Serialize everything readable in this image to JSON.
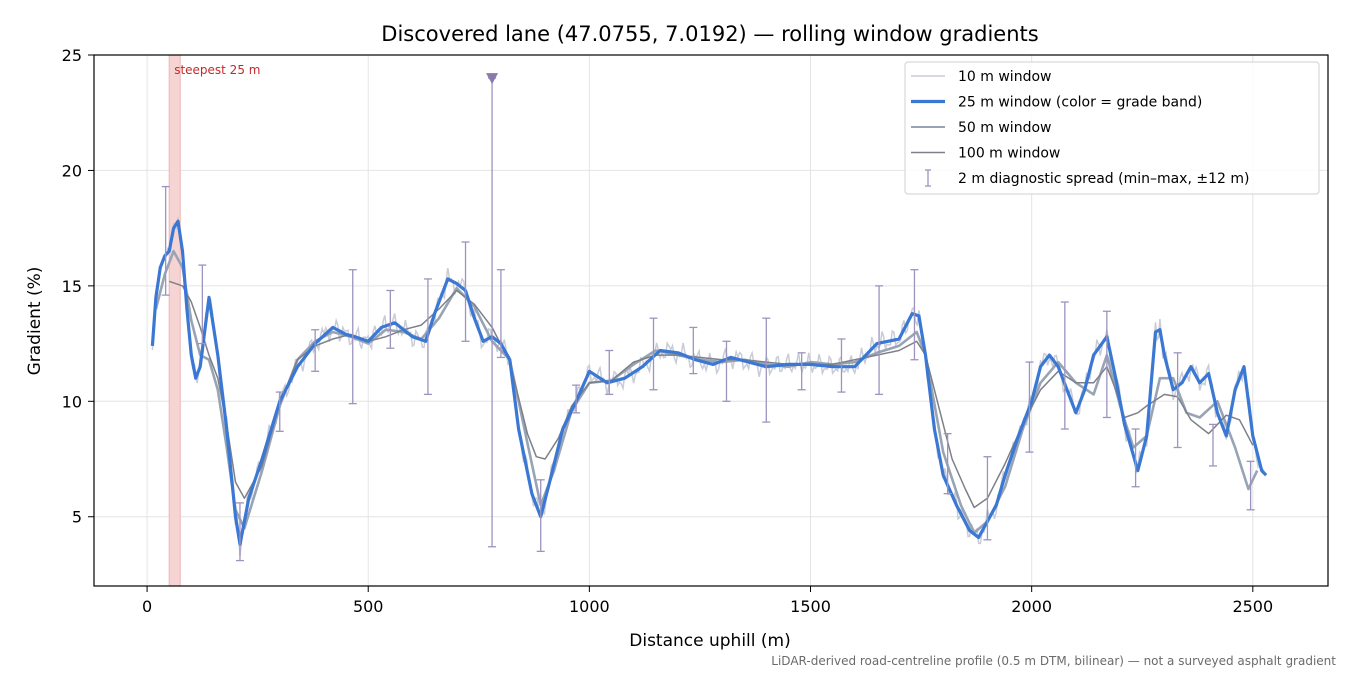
{
  "chart_data": {
    "type": "line",
    "title": "Discovered lane (47.0755, 7.0192) — rolling window gradients",
    "xlabel": "Distance uphill (m)",
    "ylabel": "Gradient (%)",
    "footnote": "LiDAR-derived road-centreline profile (0.5 m DTM, bilinear) — not a surveyed asphalt gradient",
    "xlim": [
      -120,
      2670
    ],
    "ylim": [
      2,
      25
    ],
    "x_ticks": [
      0,
      500,
      1000,
      1500,
      2000,
      2500
    ],
    "y_ticks": [
      5,
      10,
      15,
      20,
      25
    ],
    "grid": true,
    "legend_position": "top-right",
    "annotation": {
      "label": "steepest 25 m",
      "x_range": [
        50,
        75
      ],
      "color": "#c62828"
    },
    "marker": {
      "x": 780,
      "y": 24,
      "symbol": "down-triangle",
      "color": "#8a79a9"
    },
    "colors": {
      "w10": "#c8ccd6",
      "w25": "#3a78d4",
      "w50": "#98a4b4",
      "w100": "#7d8088",
      "spread": "#9d93bf",
      "highlight": "#f6d4d4"
    },
    "legend": [
      {
        "key": "w10",
        "label": "10 m window"
      },
      {
        "key": "w25",
        "label": "25 m window (color = grade band)"
      },
      {
        "key": "w50",
        "label": "50 m window"
      },
      {
        "key": "w100",
        "label": "100 m window"
      },
      {
        "key": "spread",
        "label": "2 m diagnostic spread (min–max, ±12 m)"
      }
    ],
    "series": [
      {
        "name": "25 m window (color = grade band)",
        "key": "w25",
        "x": [
          12,
          20,
          30,
          40,
          50,
          60,
          70,
          80,
          90,
          100,
          110,
          120,
          130,
          140,
          160,
          180,
          200,
          210,
          230,
          260,
          300,
          340,
          380,
          420,
          450,
          470,
          500,
          530,
          560,
          600,
          630,
          650,
          680,
          700,
          720,
          740,
          760,
          780,
          800,
          820,
          840,
          870,
          890,
          910,
          940,
          970,
          1000,
          1040,
          1080,
          1120,
          1160,
          1200,
          1240,
          1280,
          1320,
          1360,
          1400,
          1450,
          1500,
          1550,
          1600,
          1650,
          1700,
          1730,
          1745,
          1760,
          1780,
          1800,
          1830,
          1860,
          1880,
          1900,
          1920,
          1940,
          1970,
          2000,
          2020,
          2040,
          2060,
          2080,
          2100,
          2120,
          2140,
          2170,
          2190,
          2210,
          2240,
          2260,
          2280,
          2290,
          2300,
          2320,
          2340,
          2360,
          2380,
          2400,
          2420,
          2440,
          2460,
          2480,
          2500,
          2520,
          2530
        ],
        "y": [
          12.4,
          14.5,
          15.8,
          16.3,
          16.5,
          17.5,
          17.8,
          16.5,
          14.0,
          12.0,
          11.0,
          11.5,
          13.0,
          14.5,
          12.0,
          8.8,
          5.0,
          3.8,
          5.8,
          7.5,
          10.0,
          11.5,
          12.5,
          13.2,
          12.9,
          12.8,
          12.6,
          13.2,
          13.4,
          12.8,
          12.6,
          13.8,
          15.3,
          15.1,
          14.8,
          13.6,
          12.6,
          12.8,
          12.5,
          11.8,
          8.8,
          6.0,
          5.0,
          6.5,
          8.8,
          10.0,
          11.3,
          10.8,
          11.0,
          11.5,
          12.2,
          12.1,
          11.8,
          11.6,
          11.9,
          11.7,
          11.5,
          11.6,
          11.6,
          11.5,
          11.5,
          12.5,
          12.7,
          13.8,
          13.7,
          12.0,
          8.8,
          6.8,
          5.5,
          4.4,
          4.1,
          4.8,
          5.5,
          6.8,
          8.5,
          10.0,
          11.5,
          12.0,
          11.5,
          10.5,
          9.5,
          10.5,
          12.0,
          12.8,
          11.0,
          9.0,
          7.0,
          8.5,
          13.0,
          13.1,
          12.0,
          10.5,
          10.8,
          11.5,
          10.8,
          11.2,
          9.5,
          8.5,
          10.5,
          11.5,
          8.5,
          7.0,
          6.8
        ]
      },
      {
        "name": "50 m window",
        "key": "w50",
        "x": [
          20,
          40,
          60,
          80,
          100,
          120,
          140,
          160,
          180,
          200,
          220,
          260,
          300,
          340,
          380,
          420,
          460,
          500,
          540,
          580,
          620,
          660,
          700,
          740,
          780,
          820,
          860,
          890,
          920,
          960,
          1000,
          1050,
          1100,
          1150,
          1200,
          1250,
          1300,
          1350,
          1400,
          1450,
          1500,
          1550,
          1600,
          1650,
          1700,
          1740,
          1760,
          1800,
          1840,
          1870,
          1900,
          1940,
          1980,
          2020,
          2060,
          2100,
          2140,
          2170,
          2200,
          2230,
          2260,
          2290,
          2320,
          2350,
          2380,
          2420,
          2460,
          2490,
          2510
        ],
        "y": [
          14.0,
          15.5,
          16.5,
          15.8,
          13.5,
          12.0,
          11.8,
          10.5,
          8.0,
          5.3,
          4.5,
          7.0,
          9.8,
          11.8,
          12.6,
          13.0,
          12.8,
          12.5,
          13.1,
          13.0,
          12.7,
          13.6,
          14.9,
          14.1,
          12.6,
          11.8,
          8.2,
          5.5,
          7.0,
          9.6,
          10.8,
          10.9,
          11.6,
          12.2,
          12.0,
          11.8,
          11.7,
          11.8,
          11.6,
          11.5,
          11.7,
          11.6,
          11.7,
          12.1,
          12.4,
          13.0,
          12.0,
          7.8,
          5.5,
          4.3,
          4.8,
          6.3,
          8.8,
          10.8,
          11.7,
          10.8,
          10.3,
          12.0,
          9.8,
          8.0,
          8.5,
          11.0,
          11.0,
          9.5,
          9.3,
          10.0,
          8.0,
          6.2,
          7.0
        ]
      },
      {
        "name": "100 m window",
        "key": "w100",
        "x": [
          50,
          80,
          100,
          120,
          140,
          160,
          180,
          200,
          220,
          260,
          300,
          340,
          380,
          420,
          460,
          500,
          540,
          580,
          620,
          660,
          700,
          740,
          780,
          820,
          860,
          880,
          900,
          930,
          960,
          1000,
          1050,
          1100,
          1150,
          1200,
          1250,
          1300,
          1350,
          1400,
          1450,
          1500,
          1550,
          1600,
          1650,
          1700,
          1740,
          1760,
          1780,
          1820,
          1850,
          1870,
          1900,
          1940,
          1980,
          2020,
          2060,
          2100,
          2140,
          2170,
          2190,
          2210,
          2240,
          2260,
          2300,
          2330,
          2360,
          2400,
          2440,
          2470,
          2500
        ],
        "y": [
          15.2,
          15.0,
          14.3,
          13.2,
          12.0,
          11.0,
          9.0,
          6.5,
          5.8,
          7.2,
          9.9,
          11.8,
          12.4,
          12.7,
          12.9,
          12.6,
          12.8,
          13.1,
          13.3,
          14.0,
          14.8,
          14.2,
          13.2,
          11.7,
          8.6,
          7.6,
          7.5,
          8.4,
          9.8,
          10.8,
          10.9,
          11.7,
          12.0,
          12.0,
          11.9,
          11.8,
          11.8,
          11.7,
          11.6,
          11.6,
          11.6,
          11.8,
          12.0,
          12.2,
          12.6,
          12.0,
          10.5,
          7.5,
          6.2,
          5.4,
          5.8,
          7.3,
          9.0,
          10.5,
          11.3,
          10.8,
          10.8,
          11.5,
          10.5,
          9.3,
          9.5,
          9.8,
          10.3,
          10.2,
          9.2,
          8.6,
          9.4,
          9.2,
          8.1
        ]
      }
    ],
    "spread": [
      {
        "x": 42,
        "min": 14.6,
        "max": 19.3
      },
      {
        "x": 125,
        "min": 12.5,
        "max": 15.9
      },
      {
        "x": 210,
        "min": 3.1,
        "max": 5.6
      },
      {
        "x": 300,
        "min": 8.7,
        "max": 10.4
      },
      {
        "x": 380,
        "min": 11.3,
        "max": 13.1
      },
      {
        "x": 465,
        "min": 9.9,
        "max": 15.7
      },
      {
        "x": 550,
        "min": 12.3,
        "max": 14.8
      },
      {
        "x": 635,
        "min": 10.3,
        "max": 15.3
      },
      {
        "x": 720,
        "min": 12.6,
        "max": 16.9
      },
      {
        "x": 800,
        "min": 11.9,
        "max": 15.7
      },
      {
        "x": 890,
        "min": 3.5,
        "max": 6.6
      },
      {
        "x": 970,
        "min": 9.5,
        "max": 10.7
      },
      {
        "x": 1045,
        "min": 10.3,
        "max": 12.2
      },
      {
        "x": 1145,
        "min": 10.5,
        "max": 13.6
      },
      {
        "x": 1235,
        "min": 11.2,
        "max": 13.2
      },
      {
        "x": 1310,
        "min": 10.0,
        "max": 12.6
      },
      {
        "x": 1400,
        "min": 9.1,
        "max": 13.6
      },
      {
        "x": 1480,
        "min": 10.5,
        "max": 12.1
      },
      {
        "x": 1570,
        "min": 10.4,
        "max": 12.7
      },
      {
        "x": 1655,
        "min": 10.3,
        "max": 15.0
      },
      {
        "x": 1735,
        "min": 11.8,
        "max": 15.7
      },
      {
        "x": 1810,
        "min": 6.0,
        "max": 8.6
      },
      {
        "x": 1900,
        "min": 4.0,
        "max": 7.6
      },
      {
        "x": 1995,
        "min": 7.8,
        "max": 11.7
      },
      {
        "x": 2075,
        "min": 8.8,
        "max": 14.3
      },
      {
        "x": 2170,
        "min": 9.3,
        "max": 13.9
      },
      {
        "x": 2235,
        "min": 6.3,
        "max": 8.8
      },
      {
        "x": 2330,
        "min": 8.0,
        "max": 12.1
      },
      {
        "x": 2410,
        "min": 7.2,
        "max": 9.0
      },
      {
        "x": 2495,
        "min": 5.3,
        "max": 7.4
      },
      {
        "x": 780,
        "min": 3.7,
        "max": 24.0
      }
    ]
  }
}
